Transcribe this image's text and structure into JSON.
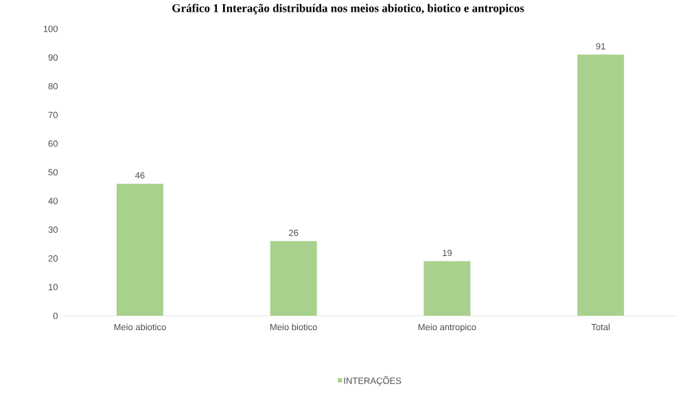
{
  "chart_data": {
    "type": "bar",
    "title": "Gráfico 1 Interação distribuída nos meios abiotico, biotico e antropicos",
    "categories": [
      "Meio abiotico",
      "Meio biotico",
      "Meio antropico",
      "Total"
    ],
    "series": [
      {
        "name": "INTERAÇÕES",
        "color": "#a9d18e",
        "values": [
          46,
          26,
          19,
          91
        ]
      }
    ],
    "ylim": [
      0,
      100
    ],
    "yticks": [
      0,
      10,
      20,
      30,
      40,
      50,
      60,
      70,
      80,
      90,
      100
    ],
    "data_labels": true,
    "legend": "bottom"
  }
}
